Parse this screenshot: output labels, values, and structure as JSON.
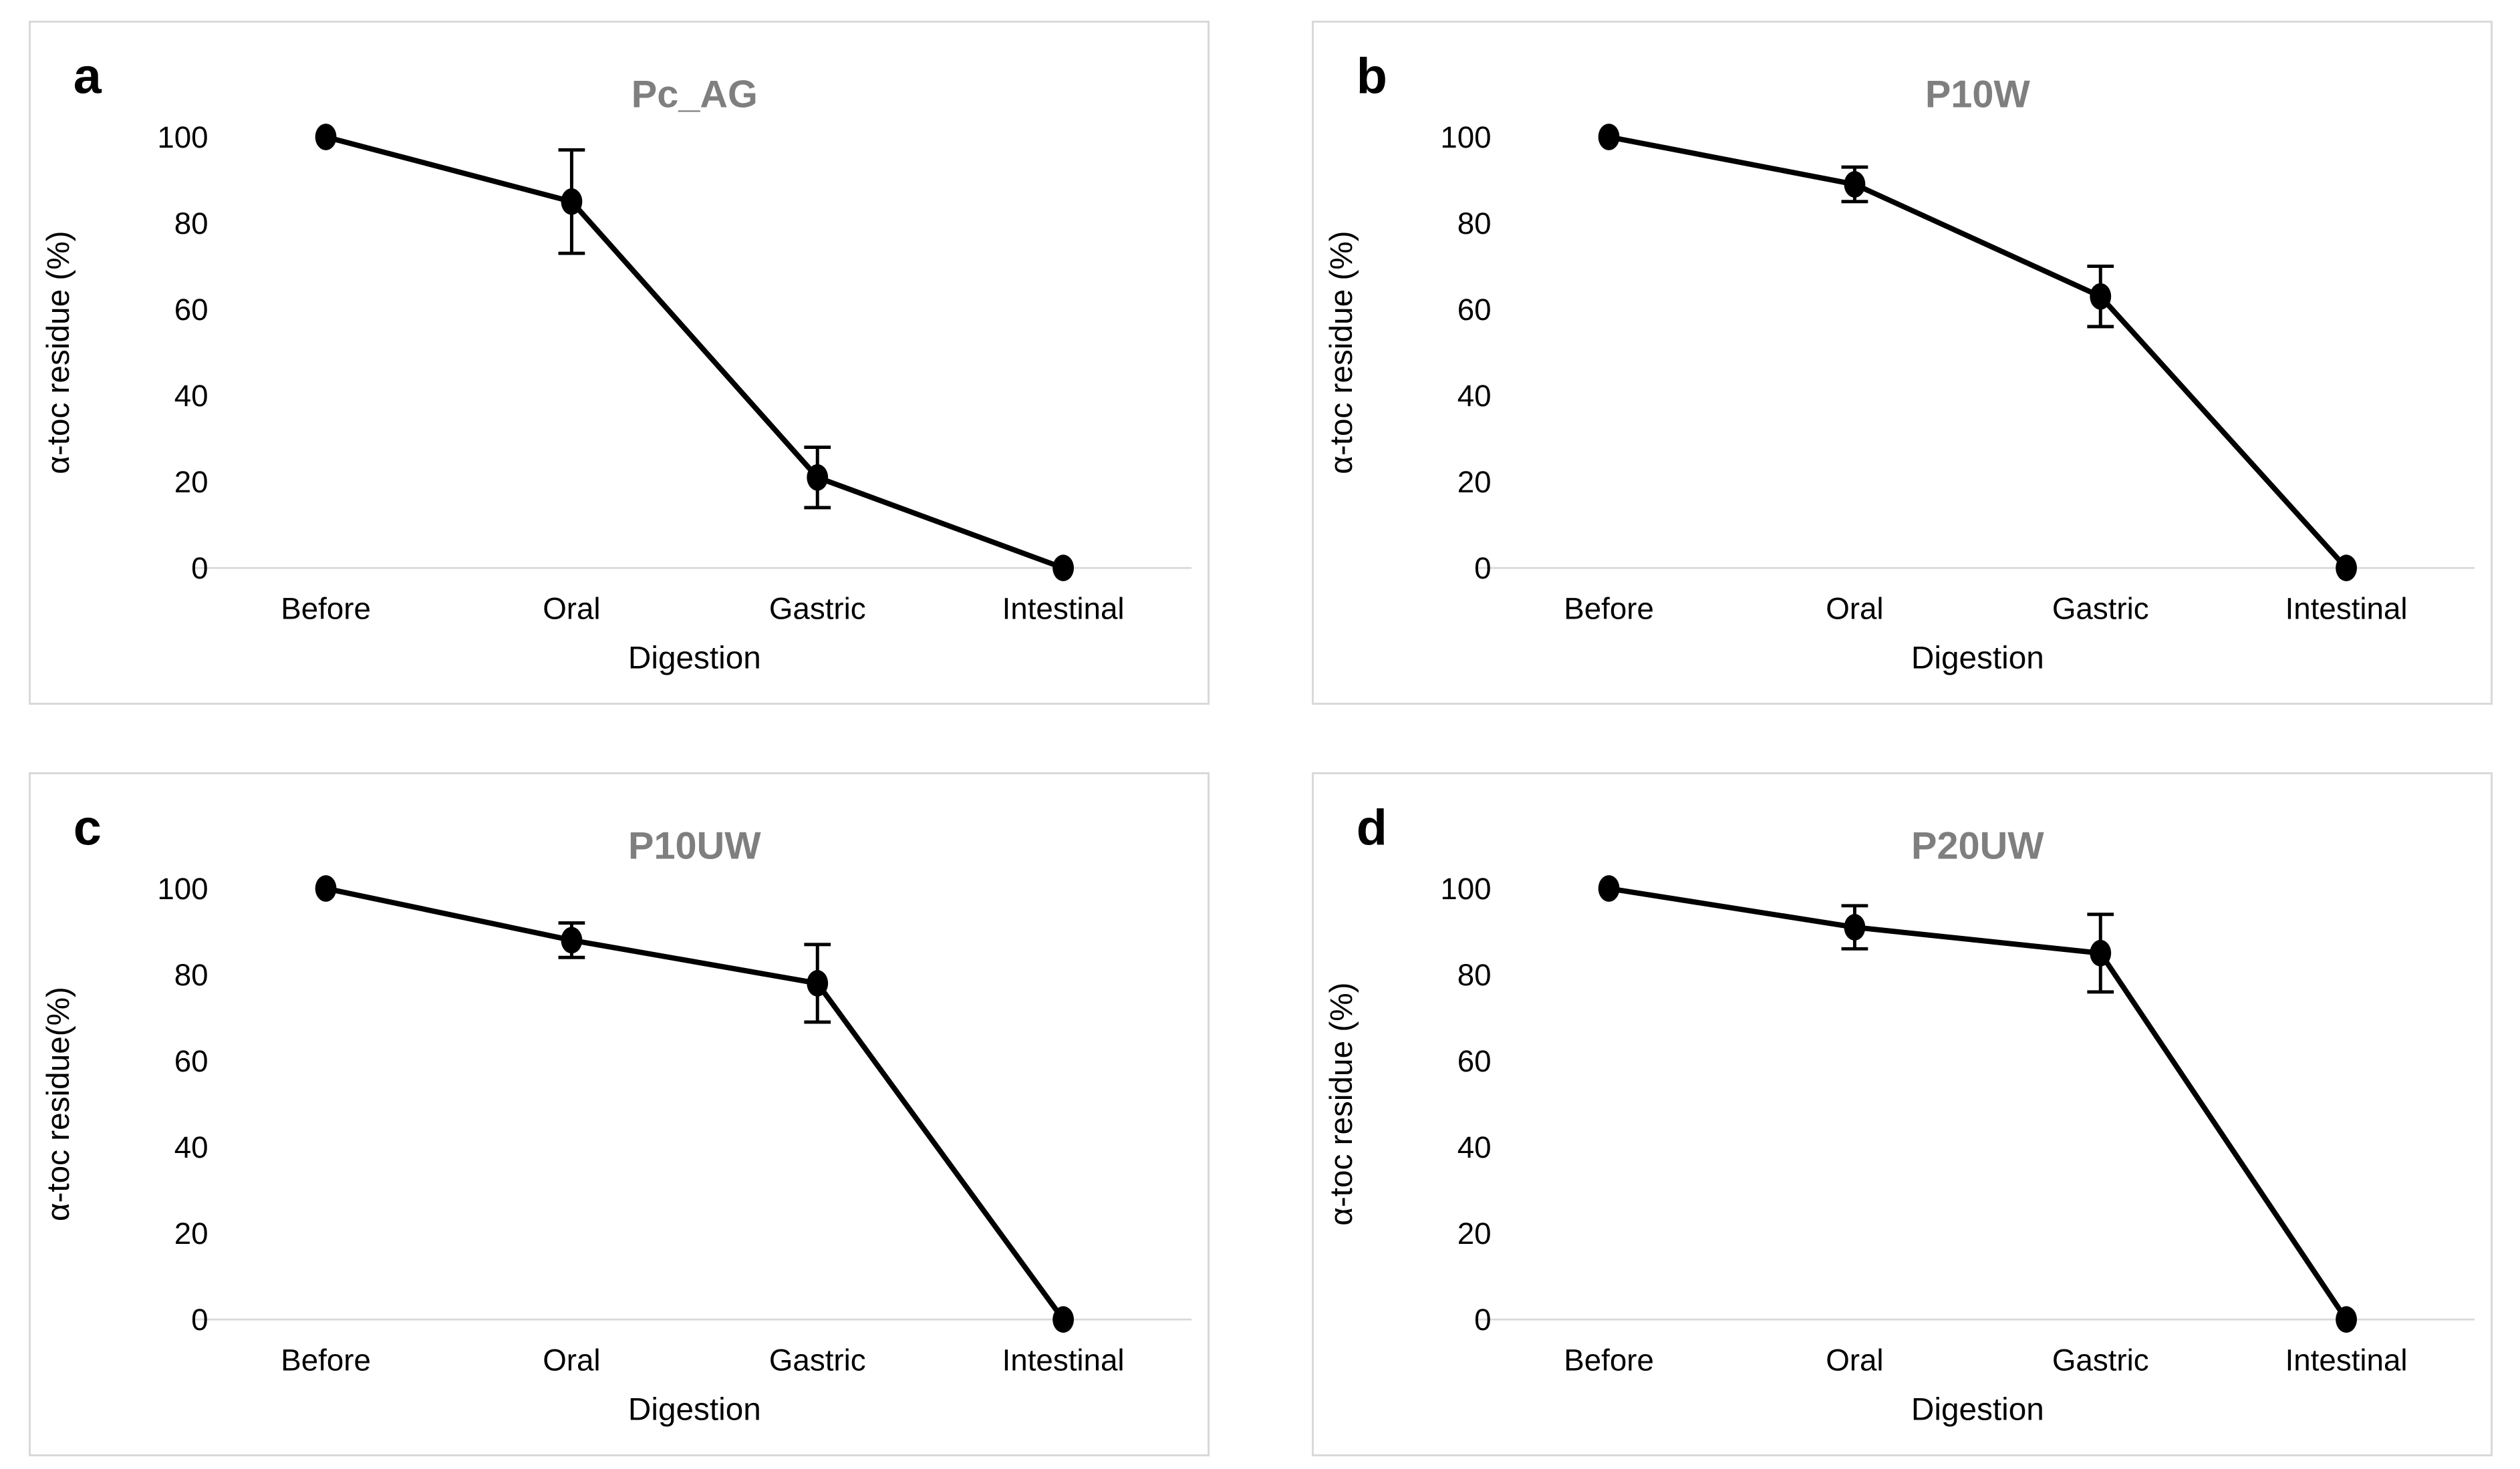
{
  "figure": {
    "background": "#ffffff",
    "text_color": "#000000",
    "title_color": "#7f7f7f",
    "border_color": "#d9d9d9",
    "baseline_color": "#d9d9d9",
    "series_color": "#000000"
  },
  "chart_data": [
    {
      "type": "line",
      "panel_letter": "a",
      "title": "Pc_AG",
      "xlabel": "Digestion",
      "ylabel": "α-toc residue (%)",
      "categories": [
        "Before",
        "Oral",
        "Gastric",
        "Intestinal"
      ],
      "series": [
        {
          "name": "alpha-toc residue",
          "values": [
            100,
            85,
            21,
            0
          ],
          "errors": [
            0,
            12,
            7,
            0
          ]
        }
      ],
      "ylim": [
        0,
        100
      ],
      "yticks": [
        0,
        20,
        40,
        60,
        80,
        100
      ],
      "grid": false,
      "legend": false
    },
    {
      "type": "line",
      "panel_letter": "b",
      "title": "P10W",
      "xlabel": "Digestion",
      "ylabel": "α-toc residue (%)",
      "categories": [
        "Before",
        "Oral",
        "Gastric",
        "Intestinal"
      ],
      "series": [
        {
          "name": "alpha-toc residue",
          "values": [
            100,
            89,
            63,
            0
          ],
          "errors": [
            0,
            4,
            7,
            0
          ]
        }
      ],
      "ylim": [
        0,
        100
      ],
      "yticks": [
        0,
        20,
        40,
        60,
        80,
        100
      ],
      "grid": false,
      "legend": false
    },
    {
      "type": "line",
      "panel_letter": "c",
      "title": "P10UW",
      "xlabel": "Digestion",
      "ylabel": "α-toc residue(%)",
      "categories": [
        "Before",
        "Oral",
        "Gastric",
        "Intestinal"
      ],
      "series": [
        {
          "name": "alpha-toc residue",
          "values": [
            100,
            88,
            78,
            0
          ],
          "errors": [
            0,
            4,
            9,
            0
          ]
        }
      ],
      "ylim": [
        0,
        100
      ],
      "yticks": [
        0,
        20,
        40,
        60,
        80,
        100
      ],
      "grid": false,
      "legend": false
    },
    {
      "type": "line",
      "panel_letter": "d",
      "title": "P20UW",
      "xlabel": "Digestion",
      "ylabel": "α-toc residue (%)",
      "categories": [
        "Before",
        "Oral",
        "Gastric",
        "Intestinal"
      ],
      "series": [
        {
          "name": "alpha-toc residue",
          "values": [
            100,
            91,
            85,
            0
          ],
          "errors": [
            0,
            5,
            9,
            0
          ]
        }
      ],
      "ylim": [
        0,
        100
      ],
      "yticks": [
        0,
        20,
        40,
        60,
        80,
        100
      ],
      "grid": false,
      "legend": false
    }
  ]
}
